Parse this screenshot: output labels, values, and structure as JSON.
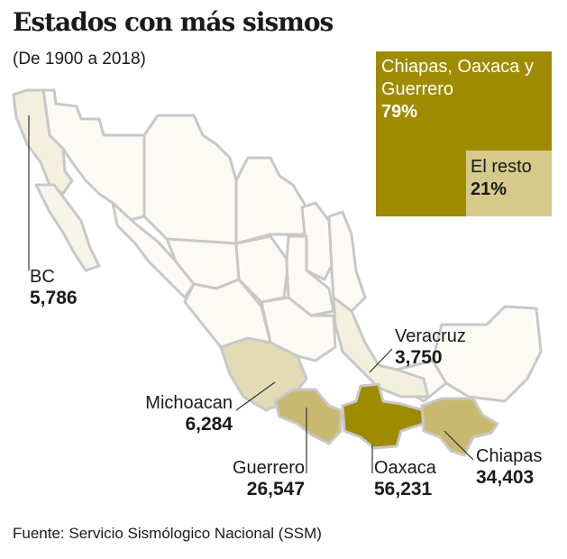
{
  "title": "Estados con más sismos",
  "subtitle": "(De 1900 a 2018)",
  "share_box": {
    "main": {
      "label": "Chiapas, Oaxaca y Guerrero",
      "value": "79%",
      "color": "#9f8b00"
    },
    "rest": {
      "label": "El resto",
      "value": "21%",
      "color": "#d5ca89"
    }
  },
  "states": [
    {
      "name": "BC",
      "value": "5,786"
    },
    {
      "name": "Michoacan",
      "value": "6,284"
    },
    {
      "name": "Veracruz",
      "value": "3,750"
    },
    {
      "name": "Guerrero",
      "value": "26,547"
    },
    {
      "name": "Oaxaca",
      "value": "56,231"
    },
    {
      "name": "Chiapas",
      "value": "34,403"
    }
  ],
  "colors": {
    "oaxaca": "#9f8b00",
    "guerrero_chiapas": "#c9b970",
    "medium": "#e2dbb4",
    "light": "#f3f0dd",
    "faint": "#fbfaf4",
    "border": "#c8c8c8"
  },
  "source": "Fuente: Servicio Sismólogico Nacional (SSM)"
}
